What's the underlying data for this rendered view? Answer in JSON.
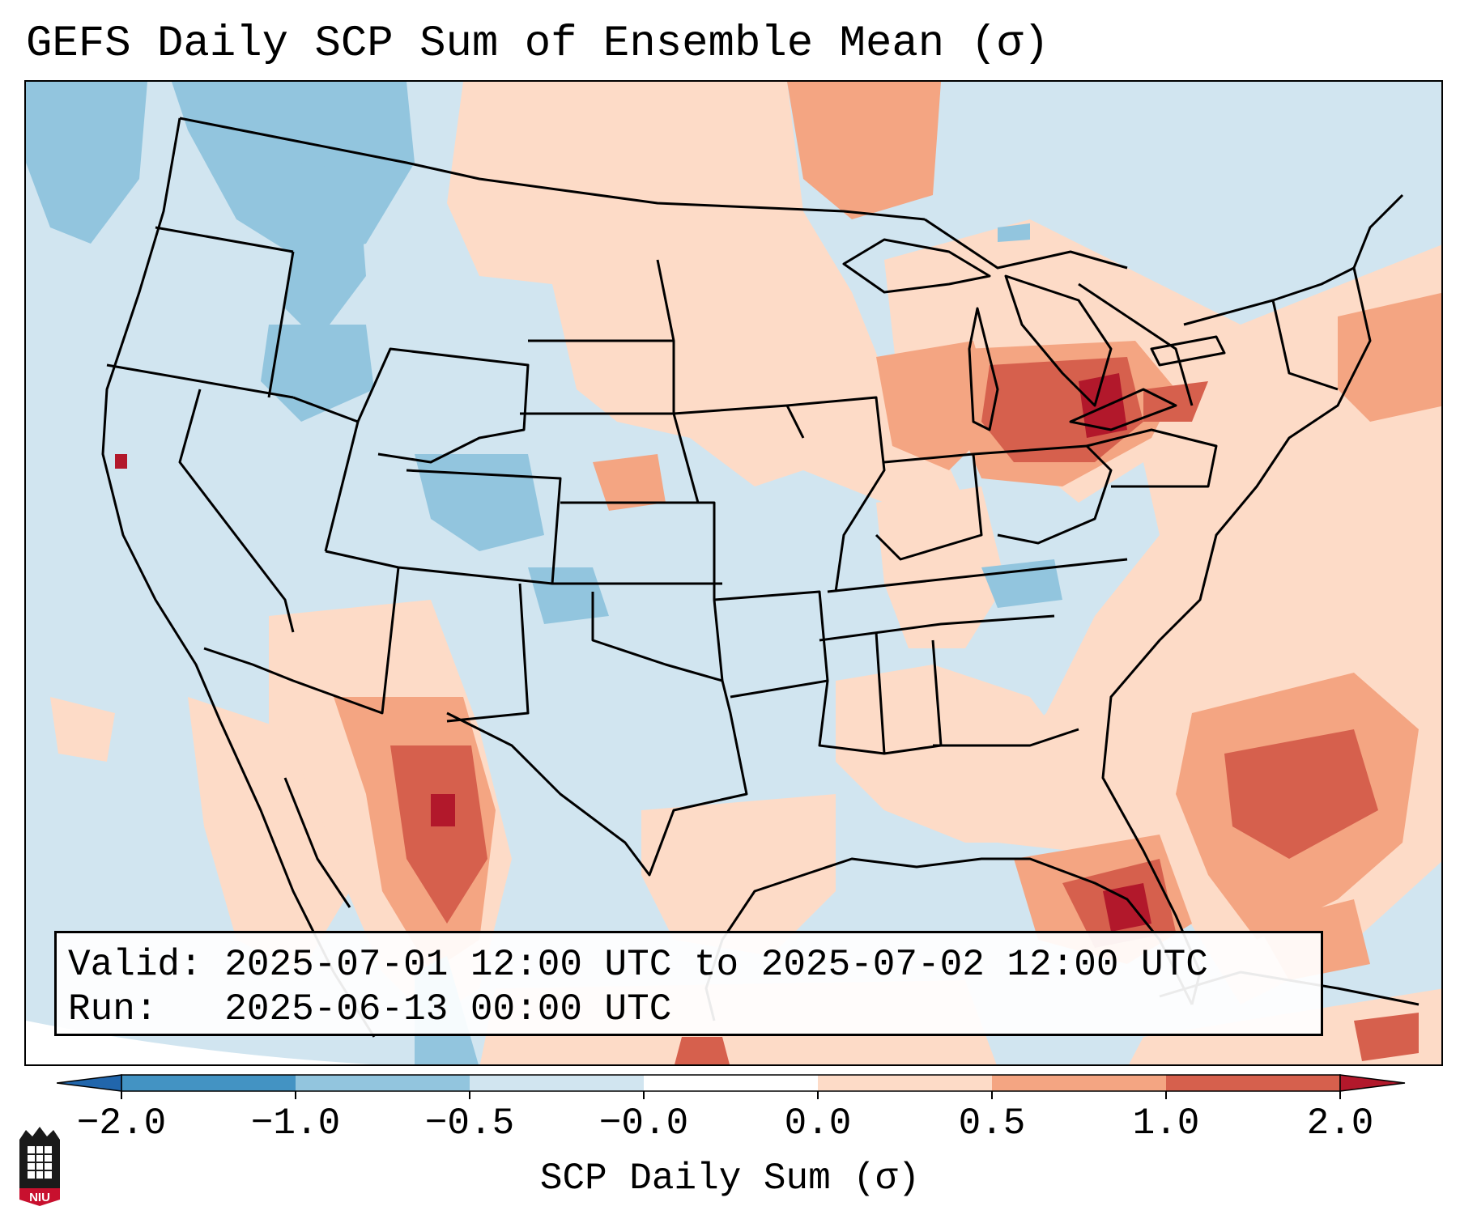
{
  "title": "GEFS Daily SCP Sum of Ensemble Mean (σ)",
  "info": {
    "valid_label": "Valid:",
    "valid_range": "2025-07-01 12:00 UTC to 2025-07-02 12:00 UTC",
    "run_label": "Run:",
    "run_time": "2025-06-13 00:00 UTC"
  },
  "colorbar": {
    "label": "SCP Daily Sum (σ)",
    "ticks": [
      "−2.0",
      "−1.0",
      "−0.5",
      "−0.0",
      "0.0",
      "0.5",
      "1.0",
      "2.0"
    ],
    "colors": [
      "#2166ac",
      "#4393c3",
      "#92c5de",
      "#d1e5f0",
      "#fddbc7",
      "#f4a582",
      "#d6604d",
      "#b2182b"
    ],
    "extend": "both"
  },
  "logo": {
    "text": "NIU",
    "color": "#c8102e"
  }
}
